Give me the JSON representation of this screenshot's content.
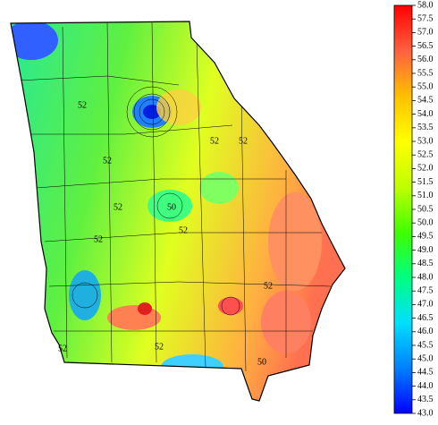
{
  "map": {
    "contour_labels": [
      "52",
      "52",
      "52",
      "52",
      "52",
      "52",
      "50",
      "52",
      "52",
      "50",
      "52",
      "52"
    ]
  },
  "colorbar": {
    "range": [
      43,
      58
    ],
    "colors": [
      "#0000ff",
      "#0080ff",
      "#00e0ff",
      "#00ff80",
      "#40ff00",
      "#c0ff00",
      "#ffff00",
      "#ffc000",
      "#ff6040",
      "#ff0000"
    ],
    "ticks": [
      {
        "value": 43,
        "label": "43.0"
      },
      43.5,
      {
        "value": 44,
        "label": "44.0"
      },
      44.5,
      {
        "value": 45,
        "label": "45.0"
      },
      45.5,
      {
        "value": 46,
        "label": "46.0"
      },
      46.5,
      {
        "value": 47,
        "label": "47.0"
      },
      47.5,
      {
        "value": 48,
        "label": "48.0"
      },
      48.5,
      {
        "value": 49,
        "label": "49.0"
      },
      49.5,
      {
        "value": 50,
        "label": "50.0"
      },
      50.5,
      {
        "value": 51,
        "label": "51.0"
      },
      51.5,
      {
        "value": 52,
        "label": "52.0"
      },
      52.5,
      {
        "value": 53,
        "label": "53.0"
      },
      53.5,
      {
        "value": 54,
        "label": "54.0"
      },
      54.5,
      {
        "value": 55,
        "label": "55.0"
      },
      55.5,
      {
        "value": 56,
        "label": "56.0"
      },
      56.5,
      {
        "value": 57,
        "label": "57.0"
      },
      57.5,
      {
        "value": 58,
        "label": "58.0"
      }
    ]
  }
}
